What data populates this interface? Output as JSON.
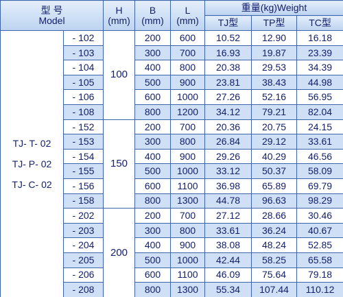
{
  "header": {
    "model_cn": "型 号",
    "model_en": "Model",
    "h": "H",
    "h_unit": "(mm)",
    "b": "B",
    "b_unit": "(mm)",
    "l": "L",
    "l_unit": "(mm)",
    "weight": "重量(kg)Weight",
    "types": [
      "TJ型",
      "TP型",
      "TC型"
    ]
  },
  "models": [
    "TJ- T- 02",
    "TJ- P- 02",
    "TJ- C- 02"
  ],
  "groups": [
    {
      "h": "100",
      "rows": [
        [
          "- 102",
          "200",
          "600",
          "10.52",
          "12.90",
          "16.18"
        ],
        [
          "- 103",
          "300",
          "700",
          "16.93",
          "19.87",
          "23.39"
        ],
        [
          "- 104",
          "400",
          "800",
          "20.38",
          "29.53",
          "34.39"
        ],
        [
          "- 105",
          "500",
          "900",
          "23.81",
          "38.43",
          "44.98"
        ],
        [
          "- 106",
          "600",
          "1000",
          "27.26",
          "52.16",
          "56.95"
        ],
        [
          "- 108",
          "800",
          "1200",
          "34.12",
          "79.21",
          "82.04"
        ]
      ]
    },
    {
      "h": "150",
      "rows": [
        [
          "- 152",
          "200",
          "700",
          "20.36",
          "20.75",
          "24.15"
        ],
        [
          "- 153",
          "300",
          "800",
          "26.84",
          "29.12",
          "33.61"
        ],
        [
          "- 154",
          "400",
          "900",
          "29.26",
          "40.29",
          "46.56"
        ],
        [
          "- 155",
          "500",
          "1000",
          "33.12",
          "50.37",
          "58.09"
        ],
        [
          "- 156",
          "600",
          "1100",
          "36.98",
          "65.89",
          "69.79"
        ],
        [
          "- 158",
          "800",
          "1300",
          "44.78",
          "96.63",
          "98.29"
        ]
      ]
    },
    {
      "h": "200",
      "rows": [
        [
          "- 202",
          "200",
          "700",
          "27.12",
          "28.66",
          "30.46"
        ],
        [
          "- 203",
          "300",
          "800",
          "33.61",
          "36.24",
          "40.67"
        ],
        [
          "- 204",
          "400",
          "900",
          "38.08",
          "48.24",
          "52.85"
        ],
        [
          "- 205",
          "500",
          "1000",
          "42.44",
          "58.25",
          "65.58"
        ],
        [
          "- 206",
          "600",
          "1100",
          "46.09",
          "75.64",
          "79.18"
        ],
        [
          "- 208",
          "800",
          "1300",
          "55.34",
          "107.44",
          "110.12"
        ]
      ]
    }
  ]
}
